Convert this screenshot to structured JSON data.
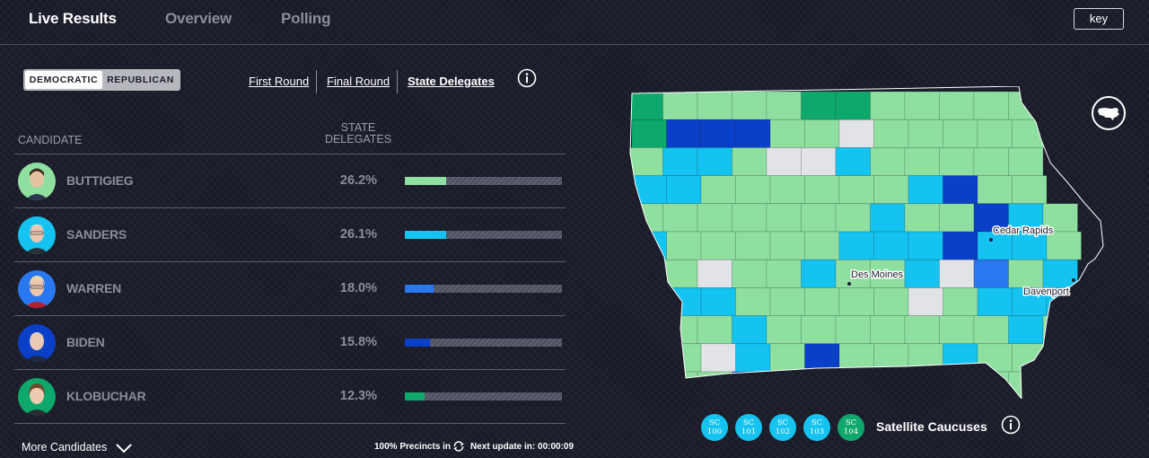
{
  "nav": {
    "tabs": [
      {
        "label": "Live Results",
        "active": true
      },
      {
        "label": "Overview",
        "active": false
      },
      {
        "label": "Polling",
        "active": false
      }
    ],
    "key_label": "key"
  },
  "party_toggle": {
    "democratic": "DEMOCRATIC",
    "republican": "REPUBLICAN",
    "selected": "DEMOCRATIC"
  },
  "rounds": {
    "first": "First Round",
    "final": "Final Round",
    "state": "State Delegates",
    "selected": "State Delegates"
  },
  "table": {
    "candidate_header": "CANDIDATE",
    "delegates_header_line1": "STATE",
    "delegates_header_line2": "DELEGATES",
    "candidates": [
      {
        "name": "BUTTIGIEG",
        "pct_label": "26.2%",
        "pct": 26.2,
        "color": "#8fe0a0"
      },
      {
        "name": "SANDERS",
        "pct_label": "26.1%",
        "pct": 26.1,
        "color": "#14c3f0"
      },
      {
        "name": "WARREN",
        "pct_label": "18.0%",
        "pct": 18.0,
        "color": "#2a78f0"
      },
      {
        "name": "BIDEN",
        "pct_label": "15.8%",
        "pct": 15.8,
        "color": "#0a3fc8"
      },
      {
        "name": "KLOBUCHAR",
        "pct_label": "12.3%",
        "pct": 12.3,
        "color": "#0fa86c"
      }
    ]
  },
  "footer": {
    "more_candidates": "More Candidates",
    "precincts": "100% Precincts in",
    "next_update": "Next update in: 00:00:09"
  },
  "map": {
    "cities": [
      "Cedar Rapids",
      "Des Moines",
      "Davenport"
    ]
  },
  "satellite": {
    "label": "Satellite Caucuses",
    "badges": [
      {
        "top": "SC",
        "num": "100",
        "color": "#14c3f0"
      },
      {
        "top": "SC",
        "num": "101",
        "color": "#14c3f0"
      },
      {
        "top": "SC",
        "num": "102",
        "color": "#14c3f0"
      },
      {
        "top": "SC",
        "num": "103",
        "color": "#14c3f0"
      },
      {
        "top": "SC",
        "num": "104",
        "color": "#0fa86c"
      }
    ]
  }
}
